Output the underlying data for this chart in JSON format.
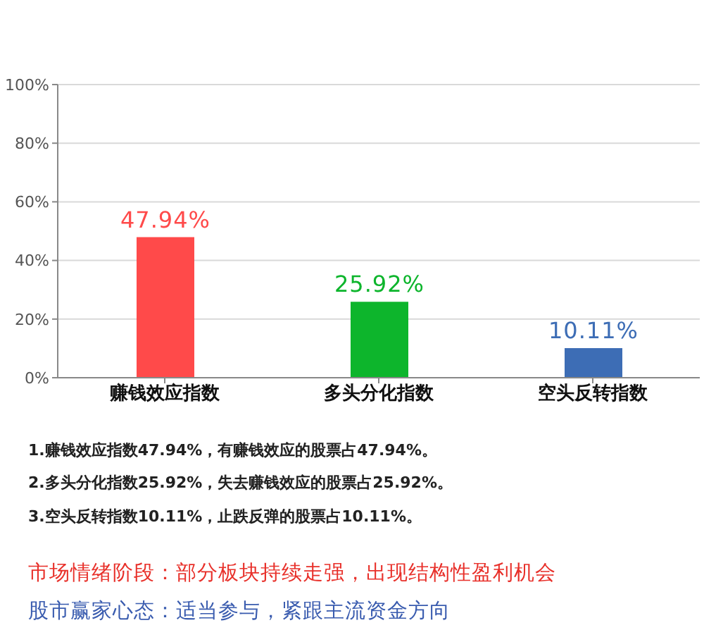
{
  "chart_data": {
    "type": "bar",
    "categories": [
      "赚钱效应指数",
      "多头分化指数",
      "空头反转指数"
    ],
    "values": [
      47.94,
      25.92,
      10.11
    ],
    "colors": [
      "#ff4a4a",
      "#0db52c",
      "#3d6db5"
    ],
    "value_labels": [
      "47.94%",
      "25.92%",
      "10.11%"
    ],
    "ylim": [
      0,
      100
    ],
    "yticks": [
      {
        "value": 0,
        "label": "0%"
      },
      {
        "value": 20,
        "label": "20%"
      },
      {
        "value": 40,
        "label": "40%"
      },
      {
        "value": 60,
        "label": "60%"
      },
      {
        "value": 80,
        "label": "80%"
      },
      {
        "value": 100,
        "label": "100%"
      }
    ],
    "grid": "y",
    "annotations": [
      "1.赚钱效应指数47.94%，有赚钱效应的股票占47.94%。",
      "2.多头分化指数25.92%，失去赚钱效应的股票占25.92%。",
      "3.空头反转指数10.11%，止跌反弹的股票占10.11%。",
      "市场情绪阶段：部分板块持续走强，出现结构性盈利机会",
      "股市赢家心态：适当参与，紧跟主流资金方向"
    ]
  }
}
